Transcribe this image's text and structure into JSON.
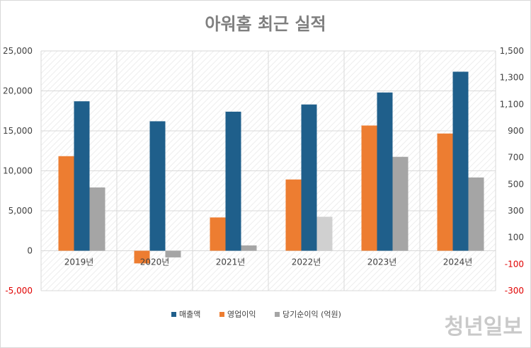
{
  "chart_data": {
    "type": "bar",
    "title": "아워홈 최근 실적",
    "categories": [
      "2019년",
      "2020년",
      "2021년",
      "2022년",
      "2023년",
      "2024년"
    ],
    "series": [
      {
        "name": "매출액",
        "axis": "left",
        "color": "#1f5f8b",
        "values": [
          18700,
          16200,
          17400,
          18300,
          19800,
          22400
        ]
      },
      {
        "name": "영업이익",
        "axis": "right",
        "color": "#ed7d31",
        "values": [
          710,
          -95,
          250,
          535,
          940,
          880
        ]
      },
      {
        "name": "당기순이익 (억원)",
        "axis": "right",
        "color": "#a5a5a5",
        "values": [
          475,
          -50,
          40,
          255,
          705,
          550
        ]
      }
    ],
    "left_axis": {
      "min": -5000,
      "max": 25000,
      "ticks": [
        "25,000",
        "20,000",
        "15,000",
        "10,000",
        "5,000",
        "0",
        "-5,000"
      ]
    },
    "right_axis": {
      "min": -300,
      "max": 1500,
      "ticks": [
        "1,500",
        "1,300",
        "1,100",
        "900",
        "700",
        "500",
        "300",
        "100",
        "-100",
        "-300"
      ]
    },
    "negative_tick_color": "#e00000",
    "legend_position": "bottom",
    "grid": true
  },
  "watermark": "청년일보"
}
